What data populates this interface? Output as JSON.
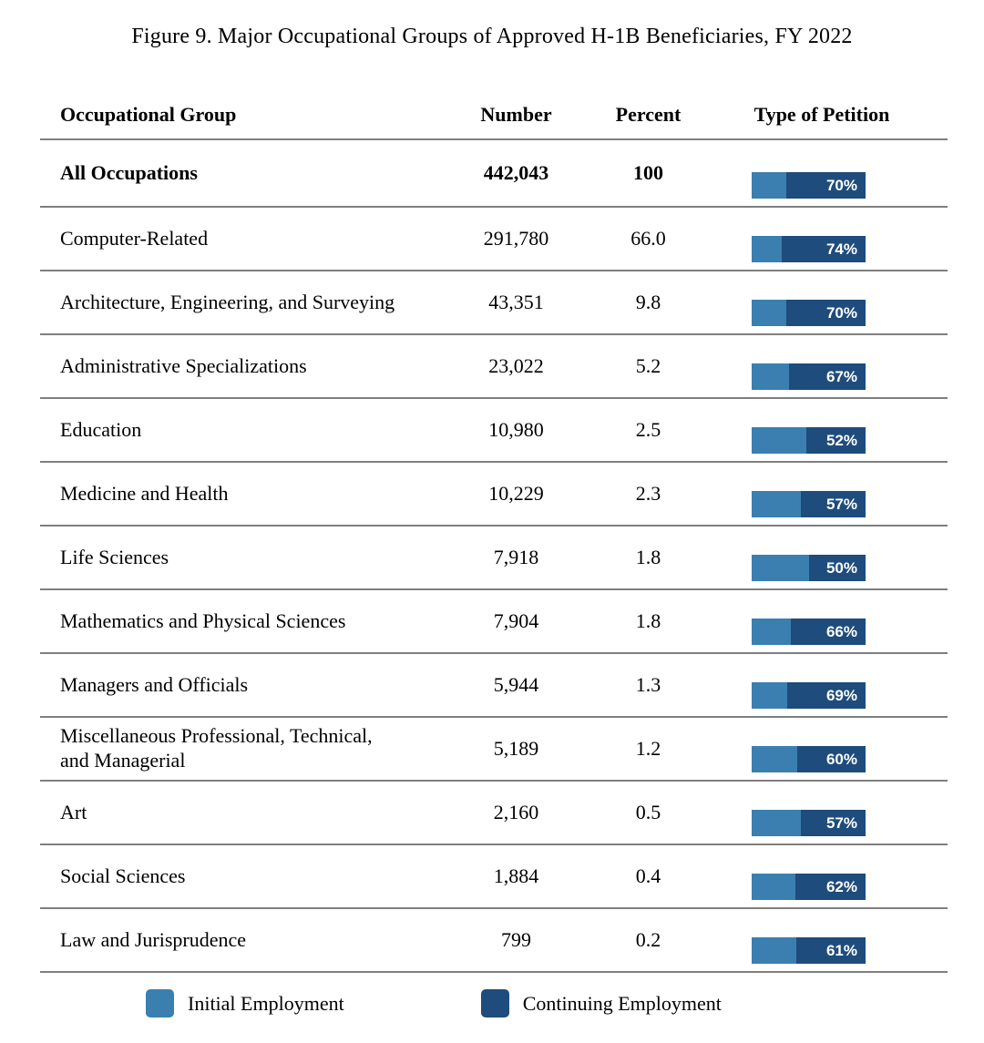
{
  "page": {
    "title": "Figure 9. Major Occupational Groups of Approved H-1B Beneficiaries, FY 2022"
  },
  "table": {
    "headers": {
      "group": "Occupational Group",
      "number": "Number",
      "percent": "Percent",
      "petition": "Type of Petition"
    }
  },
  "legend": {
    "initial": "Initial Employment",
    "continuing": "Continuing Employment"
  },
  "colors": {
    "initial": "#3A7FB0",
    "continuing": "#1E4C7C",
    "rule": "#7F7F7F"
  },
  "chart_data": {
    "type": "table",
    "subtype": "table-with-stacked-bar-column",
    "title": "Figure 9. Major Occupational Groups of Approved H-1B Beneficiaries, FY 2022",
    "columns": [
      "Occupational Group",
      "Number",
      "Percent",
      "Type of Petition"
    ],
    "legend": [
      "Initial Employment",
      "Continuing Employment"
    ],
    "bar_note": "Each bar is 100% wide; labeled dark segment = Continuing Employment %, unlabeled light segment = Initial Employment % (100 - continuing)",
    "rows": [
      {
        "group": "All Occupations",
        "number": "442,043",
        "percent": "100",
        "continuing_pct": 70,
        "bold": true
      },
      {
        "group": "Computer-Related",
        "number": "291,780",
        "percent": "66.0",
        "continuing_pct": 74,
        "bold": false
      },
      {
        "group": "Architecture, Engineering, and Surveying",
        "number": "43,351",
        "percent": "9.8",
        "continuing_pct": 70,
        "bold": false
      },
      {
        "group": "Administrative Specializations",
        "number": "23,022",
        "percent": "5.2",
        "continuing_pct": 67,
        "bold": false
      },
      {
        "group": "Education",
        "number": "10,980",
        "percent": "2.5",
        "continuing_pct": 52,
        "bold": false
      },
      {
        "group": "Medicine and Health",
        "number": "10,229",
        "percent": "2.3",
        "continuing_pct": 57,
        "bold": false
      },
      {
        "group": "Life Sciences",
        "number": "7,918",
        "percent": "1.8",
        "continuing_pct": 50,
        "bold": false
      },
      {
        "group": "Mathematics and Physical Sciences",
        "number": "7,904",
        "percent": "1.8",
        "continuing_pct": 66,
        "bold": false
      },
      {
        "group": "Managers and Officials",
        "number": "5,944",
        "percent": "1.3",
        "continuing_pct": 69,
        "bold": false
      },
      {
        "group": "Miscellaneous Professional, Technical, and Managerial",
        "number": "5,189",
        "percent": "1.2",
        "continuing_pct": 60,
        "bold": false
      },
      {
        "group": "Art",
        "number": "2,160",
        "percent": "0.5",
        "continuing_pct": 57,
        "bold": false
      },
      {
        "group": "Social Sciences",
        "number": "1,884",
        "percent": "0.4",
        "continuing_pct": 62,
        "bold": false
      },
      {
        "group": "Law and Jurisprudence",
        "number": "799",
        "percent": "0.2",
        "continuing_pct": 61,
        "bold": false
      }
    ]
  }
}
